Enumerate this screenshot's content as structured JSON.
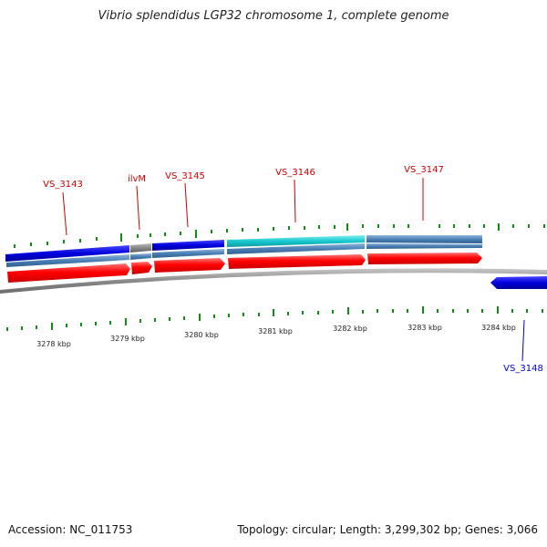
{
  "title": "Vibrio splendidus LGP32 chromosome 1, complete genome",
  "footer": {
    "accession": "Accession: NC_011753",
    "topology": "Topology: circular; Length: 3,299,302 bp; Genes: 3,066"
  },
  "colors": {
    "cds_red": "#ff0000",
    "blue": "#0000dd",
    "steel": "#4a7fb5",
    "cyan": "#19c8d0",
    "gray": "#888888",
    "tick_green": "#138a13",
    "label_red": "#cc0000",
    "label_blue": "#0000cc"
  },
  "scale_labels": [
    "3278 kbp",
    "3279 kbp",
    "3280 kbp",
    "3281 kbp",
    "3282 kbp",
    "3283 kbp",
    "3284 kbp"
  ],
  "gene_labels": {
    "top": [
      "VS_3143",
      "ilvM",
      "VS_3145",
      "VS_3146",
      "VS_3147"
    ],
    "bottom": [
      "VS_3148"
    ]
  }
}
